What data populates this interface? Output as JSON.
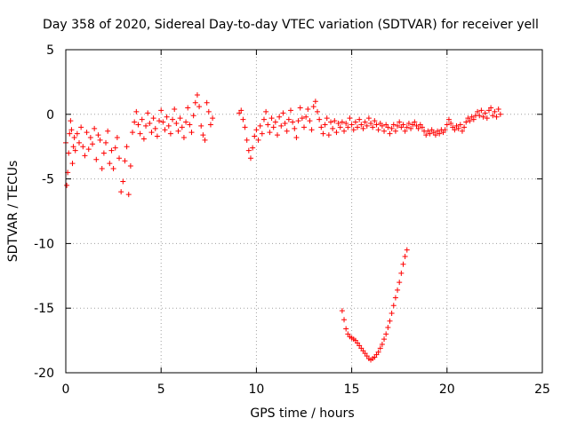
{
  "chart_data": {
    "type": "scatter",
    "title": "Day 358 of 2020, Sidereal Day-to-day VTEC variation (SDTVAR) for receiver yell",
    "xlabel": "GPS time / hours",
    "ylabel": "SDTVAR / TECUs",
    "xlim": [
      0,
      25
    ],
    "ylim": [
      -20,
      5
    ],
    "xticks": [
      0,
      5,
      10,
      15,
      20,
      25
    ],
    "yticks": [
      5,
      0,
      -5,
      -10,
      -15,
      -20
    ],
    "xtick_labels": [
      "0",
      "5",
      "10",
      "15",
      "20",
      "25"
    ],
    "ytick_labels": [
      "5",
      "0",
      "-5",
      "-10",
      "-15",
      "-20"
    ],
    "grid": true,
    "marker": "+",
    "color": "#ff0000",
    "series": [
      {
        "name": "SDTVAR",
        "points": [
          [
            0.0,
            -2.2
          ],
          [
            0.05,
            -5.5
          ],
          [
            0.1,
            -4.5
          ],
          [
            0.15,
            -3.0
          ],
          [
            0.2,
            -1.5
          ],
          [
            0.25,
            -0.5
          ],
          [
            0.3,
            -1.2
          ],
          [
            0.35,
            -3.8
          ],
          [
            0.4,
            -2.5
          ],
          [
            0.45,
            -1.8
          ],
          [
            0.5,
            -2.8
          ],
          [
            0.6,
            -1.5
          ],
          [
            0.7,
            -2.2
          ],
          [
            0.8,
            -1.0
          ],
          [
            0.9,
            -2.5
          ],
          [
            1.0,
            -3.2
          ],
          [
            1.1,
            -1.4
          ],
          [
            1.2,
            -2.7
          ],
          [
            1.3,
            -1.8
          ],
          [
            1.4,
            -2.3
          ],
          [
            1.5,
            -1.1
          ],
          [
            1.6,
            -3.5
          ],
          [
            1.7,
            -1.6
          ],
          [
            1.8,
            -2.0
          ],
          [
            1.9,
            -4.2
          ],
          [
            2.0,
            -3.0
          ],
          [
            2.1,
            -2.2
          ],
          [
            2.2,
            -1.3
          ],
          [
            2.3,
            -3.8
          ],
          [
            2.4,
            -2.8
          ],
          [
            2.5,
            -4.2
          ],
          [
            2.6,
            -2.6
          ],
          [
            2.7,
            -1.8
          ],
          [
            2.8,
            -3.4
          ],
          [
            2.9,
            -6.0
          ],
          [
            3.0,
            -5.2
          ],
          [
            3.1,
            -3.6
          ],
          [
            3.2,
            -2.5
          ],
          [
            3.3,
            -6.2
          ],
          [
            3.4,
            -4.0
          ],
          [
            3.5,
            -1.4
          ],
          [
            3.6,
            -0.6
          ],
          [
            3.7,
            0.2
          ],
          [
            3.8,
            -0.8
          ],
          [
            3.9,
            -1.5
          ],
          [
            4.0,
            -0.4
          ],
          [
            4.1,
            -1.9
          ],
          [
            4.2,
            -0.9
          ],
          [
            4.3,
            0.1
          ],
          [
            4.4,
            -0.7
          ],
          [
            4.5,
            -1.4
          ],
          [
            4.6,
            -0.3
          ],
          [
            4.7,
            -1.1
          ],
          [
            4.8,
            -1.7
          ],
          [
            4.9,
            -0.5
          ],
          [
            5.0,
            0.3
          ],
          [
            5.1,
            -0.6
          ],
          [
            5.2,
            -1.2
          ],
          [
            5.3,
            -0.2
          ],
          [
            5.4,
            -0.9
          ],
          [
            5.5,
            -1.5
          ],
          [
            5.6,
            -0.4
          ],
          [
            5.7,
            0.4
          ],
          [
            5.8,
            -0.7
          ],
          [
            5.9,
            -1.3
          ],
          [
            6.0,
            -0.3
          ],
          [
            6.1,
            -1.0
          ],
          [
            6.2,
            -1.8
          ],
          [
            6.3,
            -0.6
          ],
          [
            6.4,
            0.5
          ],
          [
            6.5,
            -0.8
          ],
          [
            6.6,
            -1.4
          ],
          [
            6.7,
            -0.1
          ],
          [
            6.8,
            0.9
          ],
          [
            6.9,
            1.5
          ],
          [
            7.0,
            0.6
          ],
          [
            7.1,
            -0.9
          ],
          [
            7.2,
            -1.6
          ],
          [
            7.3,
            -2.0
          ],
          [
            7.4,
            0.9
          ],
          [
            7.5,
            0.2
          ],
          [
            7.6,
            -0.8
          ],
          [
            7.7,
            -0.3
          ],
          [
            9.1,
            0.1
          ],
          [
            9.2,
            0.3
          ],
          [
            9.3,
            -0.4
          ],
          [
            9.4,
            -1.0
          ],
          [
            9.5,
            -2.0
          ],
          [
            9.6,
            -2.8
          ],
          [
            9.7,
            -3.4
          ],
          [
            9.8,
            -2.6
          ],
          [
            9.9,
            -1.7
          ],
          [
            10.0,
            -1.2
          ],
          [
            10.1,
            -2.0
          ],
          [
            10.2,
            -0.9
          ],
          [
            10.3,
            -1.5
          ],
          [
            10.4,
            -0.4
          ],
          [
            10.5,
            0.2
          ],
          [
            10.6,
            -0.8
          ],
          [
            10.7,
            -1.4
          ],
          [
            10.8,
            -0.3
          ],
          [
            10.9,
            -1.0
          ],
          [
            11.0,
            -0.6
          ],
          [
            11.1,
            -1.6
          ],
          [
            11.2,
            -0.2
          ],
          [
            11.3,
            -0.9
          ],
          [
            11.4,
            0.1
          ],
          [
            11.5,
            -0.7
          ],
          [
            11.6,
            -1.3
          ],
          [
            11.7,
            -0.4
          ],
          [
            11.8,
            0.3
          ],
          [
            11.9,
            -0.6
          ],
          [
            12.0,
            -1.1
          ],
          [
            12.1,
            -1.8
          ],
          [
            12.2,
            -0.5
          ],
          [
            12.3,
            0.5
          ],
          [
            12.4,
            -0.3
          ],
          [
            12.5,
            -1.0
          ],
          [
            12.6,
            -0.2
          ],
          [
            12.7,
            0.4
          ],
          [
            12.8,
            -0.5
          ],
          [
            12.9,
            -1.2
          ],
          [
            13.0,
            0.6
          ],
          [
            13.1,
            1.0
          ],
          [
            13.2,
            0.2
          ],
          [
            13.3,
            -0.4
          ],
          [
            13.4,
            -1.0
          ],
          [
            13.5,
            -1.5
          ],
          [
            13.6,
            -0.8
          ],
          [
            13.7,
            -0.3
          ],
          [
            13.8,
            -1.6
          ],
          [
            13.9,
            -0.6
          ],
          [
            14.0,
            -1.1
          ],
          [
            14.1,
            -0.5
          ],
          [
            14.2,
            -1.4
          ],
          [
            14.3,
            -0.7
          ],
          [
            14.4,
            -1.0
          ],
          [
            14.5,
            -0.6
          ],
          [
            14.6,
            -1.3
          ],
          [
            14.7,
            -0.7
          ],
          [
            14.8,
            -1.0
          ],
          [
            14.9,
            -0.3
          ],
          [
            15.0,
            -0.8
          ],
          [
            15.1,
            -1.2
          ],
          [
            15.2,
            -0.6
          ],
          [
            15.3,
            -1.0
          ],
          [
            15.4,
            -0.4
          ],
          [
            15.5,
            -0.8
          ],
          [
            15.6,
            -1.1
          ],
          [
            15.7,
            -0.6
          ],
          [
            15.8,
            -0.9
          ],
          [
            15.9,
            -0.3
          ],
          [
            16.0,
            -0.7
          ],
          [
            16.1,
            -1.0
          ],
          [
            16.2,
            -0.5
          ],
          [
            16.3,
            -0.8
          ],
          [
            16.4,
            -1.2
          ],
          [
            16.5,
            -0.7
          ],
          [
            16.6,
            -0.9
          ],
          [
            16.7,
            -1.3
          ],
          [
            16.8,
            -0.8
          ],
          [
            16.9,
            -1.0
          ],
          [
            17.0,
            -1.5
          ],
          [
            17.1,
            -1.1
          ],
          [
            17.2,
            -0.8
          ],
          [
            17.3,
            -1.3
          ],
          [
            17.4,
            -0.9
          ],
          [
            17.5,
            -0.6
          ],
          [
            17.6,
            -1.0
          ],
          [
            17.7,
            -0.8
          ],
          [
            17.8,
            -1.3
          ],
          [
            17.9,
            -1.0
          ],
          [
            18.0,
            -0.7
          ],
          [
            18.1,
            -1.1
          ],
          [
            18.2,
            -0.8
          ],
          [
            18.3,
            -0.6
          ],
          [
            18.4,
            -0.9
          ],
          [
            18.5,
            -1.1
          ],
          [
            18.6,
            -0.8
          ],
          [
            18.7,
            -1.0
          ],
          [
            18.8,
            -1.3
          ],
          [
            18.9,
            -1.6
          ],
          [
            19.0,
            -1.3
          ],
          [
            19.1,
            -1.5
          ],
          [
            19.2,
            -1.2
          ],
          [
            19.3,
            -1.4
          ],
          [
            19.4,
            -1.6
          ],
          [
            19.5,
            -1.3
          ],
          [
            19.6,
            -1.5
          ],
          [
            19.7,
            -1.2
          ],
          [
            19.8,
            -1.4
          ],
          [
            19.9,
            -1.2
          ],
          [
            20.0,
            -0.8
          ],
          [
            20.1,
            -0.4
          ],
          [
            20.2,
            -0.7
          ],
          [
            20.3,
            -1.0
          ],
          [
            20.4,
            -1.2
          ],
          [
            20.5,
            -0.9
          ],
          [
            20.6,
            -1.1
          ],
          [
            20.7,
            -0.8
          ],
          [
            20.8,
            -1.3
          ],
          [
            20.9,
            -1.0
          ],
          [
            21.0,
            -0.6
          ],
          [
            21.1,
            -0.3
          ],
          [
            21.2,
            -0.5
          ],
          [
            21.3,
            -0.2
          ],
          [
            21.4,
            -0.4
          ],
          [
            21.5,
            -0.1
          ],
          [
            21.6,
            0.2
          ],
          [
            21.7,
            -0.1
          ],
          [
            21.8,
            0.3
          ],
          [
            21.9,
            -0.2
          ],
          [
            22.0,
            0.1
          ],
          [
            22.1,
            -0.3
          ],
          [
            22.2,
            0.3
          ],
          [
            22.3,
            0.5
          ],
          [
            22.4,
            -0.1
          ],
          [
            22.5,
            0.2
          ],
          [
            22.6,
            -0.2
          ],
          [
            22.7,
            0.4
          ],
          [
            22.8,
            0.0
          ],
          [
            14.5,
            -15.2
          ],
          [
            14.6,
            -15.9
          ],
          [
            14.7,
            -16.6
          ],
          [
            14.8,
            -17.0
          ],
          [
            14.9,
            -17.2
          ],
          [
            15.0,
            -17.3
          ],
          [
            15.1,
            -17.4
          ],
          [
            15.2,
            -17.5
          ],
          [
            15.3,
            -17.7
          ],
          [
            15.4,
            -17.9
          ],
          [
            15.5,
            -18.1
          ],
          [
            15.6,
            -18.3
          ],
          [
            15.7,
            -18.5
          ],
          [
            15.8,
            -18.7
          ],
          [
            15.9,
            -18.9
          ],
          [
            16.0,
            -19.0
          ],
          [
            16.1,
            -18.9
          ],
          [
            16.2,
            -18.8
          ],
          [
            16.3,
            -18.6
          ],
          [
            16.4,
            -18.4
          ],
          [
            16.5,
            -18.1
          ],
          [
            16.6,
            -17.8
          ],
          [
            16.7,
            -17.4
          ],
          [
            16.8,
            -17.0
          ],
          [
            16.9,
            -16.5
          ],
          [
            17.0,
            -16.0
          ],
          [
            17.1,
            -15.4
          ],
          [
            17.2,
            -14.8
          ],
          [
            17.3,
            -14.2
          ],
          [
            17.4,
            -13.6
          ],
          [
            17.5,
            -13.0
          ],
          [
            17.6,
            -12.3
          ],
          [
            17.7,
            -11.6
          ],
          [
            17.8,
            -11.0
          ],
          [
            17.9,
            -10.5
          ]
        ]
      }
    ]
  }
}
